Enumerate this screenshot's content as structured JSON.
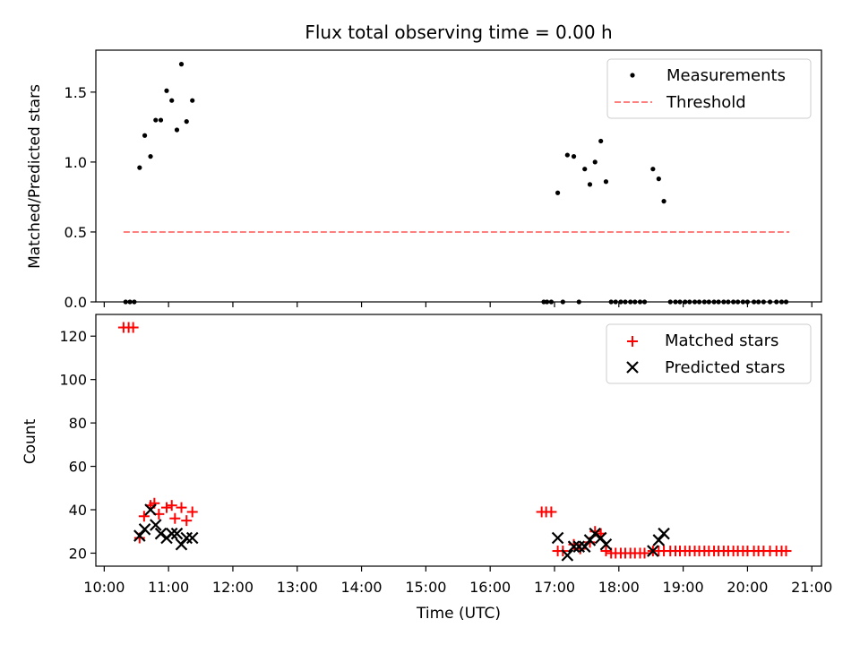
{
  "chart_data": [
    {
      "type": "scatter",
      "title": "Flux total observing time = 0.00 h",
      "xlabel": "",
      "ylabel": "Matched/Predicted stars",
      "ylim": [
        0,
        1.8
      ],
      "yticks": [
        0.0,
        0.5,
        1.0,
        1.5
      ],
      "ytick_labels": [
        "0.0",
        "0.5",
        "1.0",
        "1.5"
      ],
      "xlim_hours": [
        9.87,
        21.15
      ],
      "legend_position": "top-right",
      "legend": [
        "Measurements",
        "Threshold"
      ],
      "series": [
        {
          "name": "Measurements",
          "marker": "dot",
          "color": "#000000",
          "points": [
            [
              10.333,
              0
            ],
            [
              10.4,
              0
            ],
            [
              10.467,
              0
            ],
            [
              10.55,
              0.96
            ],
            [
              10.63,
              1.19
            ],
            [
              10.72,
              1.04
            ],
            [
              10.8,
              1.3
            ],
            [
              10.88,
              1.3
            ],
            [
              10.97,
              1.51
            ],
            [
              11.05,
              1.44
            ],
            [
              11.13,
              1.23
            ],
            [
              11.2,
              1.7
            ],
            [
              11.28,
              1.29
            ],
            [
              11.37,
              1.44
            ],
            [
              16.833,
              0
            ],
            [
              16.883,
              0
            ],
            [
              16.95,
              0
            ],
            [
              17.05,
              0.78
            ],
            [
              17.13,
              0
            ],
            [
              17.2,
              1.05
            ],
            [
              17.3,
              1.04
            ],
            [
              17.38,
              0
            ],
            [
              17.47,
              0.95
            ],
            [
              17.55,
              0.84
            ],
            [
              17.63,
              1.0
            ],
            [
              17.72,
              1.15
            ],
            [
              17.8,
              0.86
            ],
            [
              17.88,
              0
            ],
            [
              17.95,
              0
            ],
            [
              18.03,
              0
            ],
            [
              18.1,
              0
            ],
            [
              18.18,
              0
            ],
            [
              18.25,
              0
            ],
            [
              18.33,
              0
            ],
            [
              18.4,
              0
            ],
            [
              18.53,
              0.95
            ],
            [
              18.62,
              0.88
            ],
            [
              18.7,
              0.72
            ],
            [
              18.8,
              0
            ],
            [
              18.88,
              0
            ],
            [
              18.95,
              0
            ],
            [
              19.03,
              0
            ],
            [
              19.1,
              0
            ],
            [
              19.18,
              0
            ],
            [
              19.25,
              0
            ],
            [
              19.33,
              0
            ],
            [
              19.4,
              0
            ],
            [
              19.48,
              0
            ],
            [
              19.55,
              0
            ],
            [
              19.63,
              0
            ],
            [
              19.7,
              0
            ],
            [
              19.78,
              0
            ],
            [
              19.85,
              0
            ],
            [
              19.93,
              0
            ],
            [
              20.0,
              0
            ],
            [
              20.1,
              0
            ],
            [
              20.17,
              0
            ],
            [
              20.25,
              0
            ],
            [
              20.35,
              0
            ],
            [
              20.45,
              0
            ],
            [
              20.53,
              0
            ],
            [
              20.6,
              0
            ]
          ]
        },
        {
          "name": "Threshold",
          "style": "dashed",
          "color": "#ff7f7f",
          "points": [
            [
              10.3,
              0.5
            ],
            [
              20.65,
              0.5
            ]
          ]
        }
      ]
    },
    {
      "type": "scatter",
      "title": "",
      "xlabel": "Time (UTC)",
      "ylabel": "Count",
      "ylim": [
        14,
        130
      ],
      "yticks": [
        20,
        40,
        60,
        80,
        100,
        120
      ],
      "ytick_labels": [
        "20",
        "40",
        "60",
        "80",
        "100",
        "120"
      ],
      "xlim_hours": [
        9.87,
        21.15
      ],
      "xticks_hours": [
        10,
        11,
        12,
        13,
        14,
        15,
        16,
        17,
        18,
        19,
        20,
        21
      ],
      "xtick_labels": [
        "10:00",
        "11:00",
        "12:00",
        "13:00",
        "14:00",
        "15:00",
        "16:00",
        "17:00",
        "18:00",
        "19:00",
        "20:00",
        "21:00"
      ],
      "legend_position": "top-right",
      "legend": [
        "Matched stars",
        "Predicted stars"
      ],
      "series": [
        {
          "name": "Matched stars",
          "marker": "plus",
          "color": "#ff0000",
          "points": [
            [
              10.3,
              124
            ],
            [
              10.38,
              124
            ],
            [
              10.45,
              124
            ],
            [
              10.55,
              27
            ],
            [
              10.62,
              37
            ],
            [
              10.72,
              42
            ],
            [
              10.78,
              43
            ],
            [
              10.85,
              38
            ],
            [
              10.97,
              41
            ],
            [
              11.05,
              42
            ],
            [
              11.1,
              36
            ],
            [
              11.2,
              41
            ],
            [
              11.28,
              35
            ],
            [
              11.37,
              39
            ],
            [
              16.8,
              39
            ],
            [
              16.87,
              39
            ],
            [
              16.95,
              39
            ],
            [
              17.05,
              21
            ],
            [
              17.13,
              21
            ],
            [
              17.3,
              24
            ],
            [
              17.4,
              22
            ],
            [
              17.55,
              25
            ],
            [
              17.63,
              30
            ],
            [
              17.72,
              29
            ],
            [
              17.8,
              21
            ],
            [
              17.88,
              20
            ],
            [
              17.95,
              20
            ],
            [
              18.03,
              20
            ],
            [
              18.1,
              20
            ],
            [
              18.18,
              20
            ],
            [
              18.25,
              20
            ],
            [
              18.33,
              20
            ],
            [
              18.4,
              20
            ],
            [
              18.53,
              21
            ],
            [
              18.62,
              21
            ],
            [
              18.7,
              21
            ],
            [
              18.8,
              21
            ],
            [
              18.88,
              21
            ],
            [
              18.95,
              21
            ],
            [
              19.03,
              21
            ],
            [
              19.1,
              21
            ],
            [
              19.18,
              21
            ],
            [
              19.25,
              21
            ],
            [
              19.33,
              21
            ],
            [
              19.4,
              21
            ],
            [
              19.48,
              21
            ],
            [
              19.55,
              21
            ],
            [
              19.63,
              21
            ],
            [
              19.7,
              21
            ],
            [
              19.78,
              21
            ],
            [
              19.85,
              21
            ],
            [
              19.93,
              21
            ],
            [
              20.0,
              21
            ],
            [
              20.1,
              21
            ],
            [
              20.17,
              21
            ],
            [
              20.25,
              21
            ],
            [
              20.35,
              21
            ],
            [
              20.45,
              21
            ],
            [
              20.53,
              21
            ],
            [
              20.6,
              21
            ]
          ]
        },
        {
          "name": "Predicted stars",
          "marker": "x",
          "color": "#000000",
          "points": [
            [
              10.55,
              28
            ],
            [
              10.63,
              31
            ],
            [
              10.72,
              40
            ],
            [
              10.8,
              33
            ],
            [
              10.88,
              29
            ],
            [
              10.97,
              27
            ],
            [
              11.05,
              29
            ],
            [
              11.13,
              29
            ],
            [
              11.2,
              24
            ],
            [
              11.28,
              27
            ],
            [
              11.37,
              27
            ],
            [
              17.05,
              27
            ],
            [
              17.2,
              19
            ],
            [
              17.3,
              23
            ],
            [
              17.38,
              23
            ],
            [
              17.47,
              23
            ],
            [
              17.55,
              26
            ],
            [
              17.63,
              29
            ],
            [
              17.72,
              27
            ],
            [
              17.8,
              24
            ],
            [
              18.53,
              21
            ],
            [
              18.62,
              26
            ],
            [
              18.7,
              29
            ]
          ]
        }
      ]
    }
  ]
}
